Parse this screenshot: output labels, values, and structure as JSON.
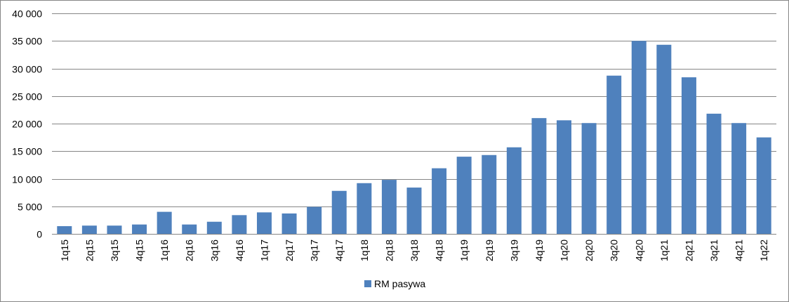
{
  "chart_data": {
    "type": "bar",
    "categories": [
      "1q15",
      "2q15",
      "3q15",
      "4q15",
      "1q16",
      "2q16",
      "3q16",
      "4q16",
      "1q17",
      "2q17",
      "3q17",
      "4q17",
      "1q18",
      "2q18",
      "3q18",
      "4q18",
      "1q19",
      "2q19",
      "3q19",
      "4q19",
      "1q20",
      "2q20",
      "3q20",
      "4q20",
      "1q21",
      "2q21",
      "3q21",
      "4q21",
      "1q22"
    ],
    "series": [
      {
        "name": "RM pasywa",
        "color": "#4f81bd",
        "values": [
          1400,
          1500,
          1500,
          1700,
          4000,
          1700,
          2200,
          3400,
          3900,
          3700,
          4900,
          7800,
          9200,
          9800,
          8400,
          11900,
          14000,
          14300,
          15700,
          21000,
          20600,
          20100,
          28700,
          35000,
          34300,
          28400,
          21800,
          20100,
          17500
        ]
      }
    ],
    "y_ticks": [
      "0",
      "5 000",
      "10 000",
      "15 000",
      "20 000",
      "25 000",
      "30 000",
      "35 000",
      "40 000"
    ],
    "ylim": [
      0,
      40000
    ],
    "y_step": 5000,
    "grid": true,
    "legend_position": "bottom",
    "gridline_color": "#868686",
    "title": "",
    "xlabel": "",
    "ylabel": ""
  }
}
